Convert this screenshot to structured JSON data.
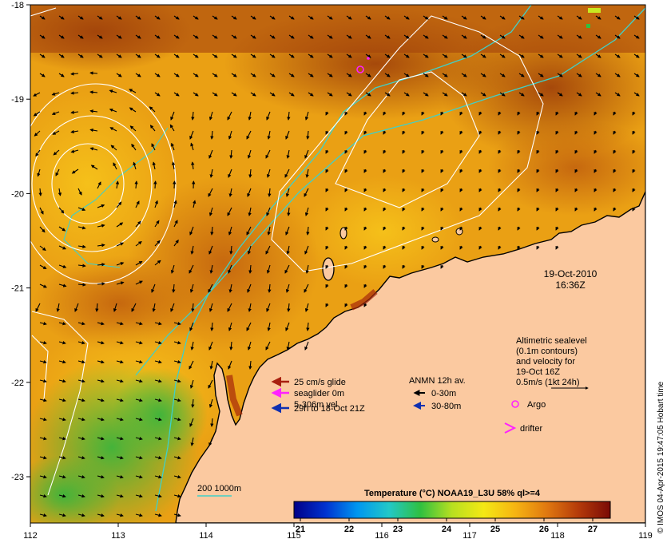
{
  "map": {
    "x_ticks": [
      "112",
      "113",
      "114",
      "115",
      "116",
      "117",
      "118",
      "119"
    ],
    "y_ticks": [
      "-18",
      "-19",
      "-20",
      "-21",
      "-22",
      "-23"
    ],
    "land_color": "#fbc9a0",
    "sea_warm_color": "#b85c0e",
    "sea_mid_color": "#f0a818",
    "sea_cool_color": "#5cc238",
    "contour_color": "#ffffff",
    "isobath_color": "#40d0c8"
  },
  "info": {
    "date": "19-Oct-2010",
    "time": "16:36Z",
    "altimetric_lines": [
      "Altimetric sealevel",
      "(0.1m contours)",
      "and velocity for",
      "19-Oct 16Z",
      "0.5m/s (1kt 24h)"
    ],
    "argo_label": "Argo",
    "drifter_label": "drifter",
    "anmn_title": "ANMN 12h av.",
    "anmn_items": [
      {
        "label": "0-30m",
        "color": "#000000"
      },
      {
        "label": "30-80m",
        "color": "#0a2a9a"
      }
    ],
    "glider_items": [
      {
        "label": "25 cm/s glide",
        "color": "#a82010"
      },
      {
        "label": "seaglider 0m",
        "color": "#ff22ff"
      },
      {
        "label": "5-306m vel",
        "color": null
      },
      {
        "label": "29h to 18-Oct 21Z",
        "color": "#1030b0"
      }
    ],
    "isobath_label": "200  1000m",
    "credit": "© IMOS 04-Apr-2015 19:47:05 Hobart time"
  },
  "colorbar": {
    "title": "Temperature (°C) NOAA19_L3U 58% ql>=4",
    "ticks": [
      "21",
      "22",
      "23",
      "24",
      "25",
      "26",
      "27"
    ],
    "stops": [
      "#000088",
      "#0032d0",
      "#0096f0",
      "#22c8c8",
      "#30c040",
      "#b8e020",
      "#f4e814",
      "#f6b412",
      "#e07810",
      "#b43a0a",
      "#7a0a06"
    ]
  }
}
